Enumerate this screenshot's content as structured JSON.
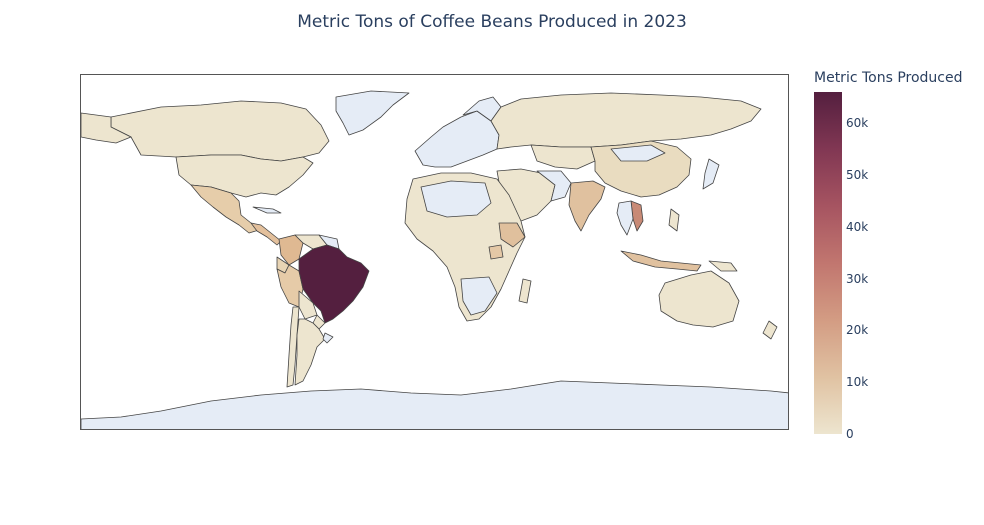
{
  "title": "Metric Tons of Coffee Beans Produced in 2023",
  "colorbar": {
    "title": "Metric Tons Produced",
    "ticks": [
      "0",
      "10k",
      "20k",
      "30k",
      "40k",
      "50k",
      "60k"
    ],
    "tick_values": [
      0,
      10000,
      20000,
      30000,
      40000,
      50000,
      60000
    ],
    "min": 0,
    "max": 66000,
    "colorscale": [
      "#ede5cf",
      "#e0c2a2",
      "#d39c83",
      "#c1766f",
      "#a65461",
      "#813753",
      "#541f3f"
    ]
  },
  "colors": {
    "no_data": "#e5ecf6",
    "border": "#444444"
  },
  "chart_data": {
    "type": "choropleth",
    "title": "Metric Tons of Coffee Beans Produced in 2023",
    "colorbar_title": "Metric Tons Produced",
    "values": [
      {
        "country": "Brazil",
        "value": 66000
      },
      {
        "country": "Vietnam",
        "value": 29000
      },
      {
        "country": "Colombia",
        "value": 12500
      },
      {
        "country": "Indonesia",
        "value": 11500
      },
      {
        "country": "Ethiopia",
        "value": 8500
      },
      {
        "country": "Honduras",
        "value": 6000
      },
      {
        "country": "India",
        "value": 5800
      },
      {
        "country": "Uganda",
        "value": 5500
      },
      {
        "country": "Mexico",
        "value": 4000
      },
      {
        "country": "Peru",
        "value": 3800
      },
      {
        "country": "Guatemala",
        "value": 3600
      },
      {
        "country": "Nicaragua",
        "value": 2700
      },
      {
        "country": "China",
        "value": 1800
      },
      {
        "country": "Malaysia",
        "value": 2000
      },
      {
        "country": "Costa Rica",
        "value": 1400
      },
      {
        "country": "Kenya",
        "value": 800
      },
      {
        "country": "Tanzania",
        "value": 1000
      },
      {
        "country": "United States",
        "value": 0
      },
      {
        "country": "Canada",
        "value": 0
      },
      {
        "country": "Russia",
        "value": 0
      },
      {
        "country": "Australia",
        "value": 0
      },
      {
        "country": "Argentina",
        "value": 0
      }
    ]
  }
}
